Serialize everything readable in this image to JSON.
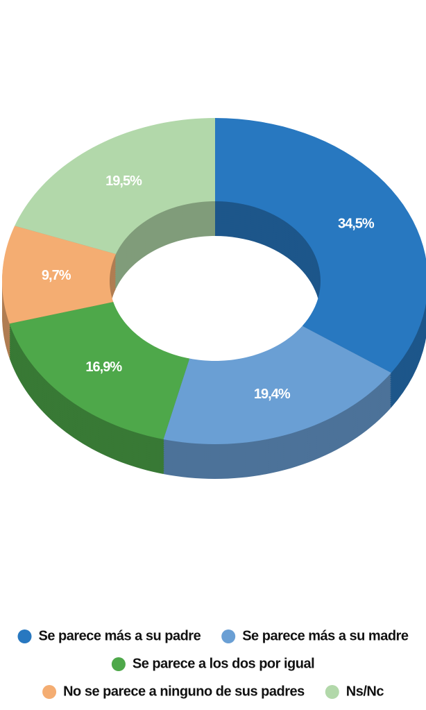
{
  "chart_data": {
    "type": "pie",
    "donut": true,
    "categories": [
      "Se parece más a su padre",
      "Se parece más a su madre",
      "Se parece a los dos por igual",
      "No se parece a ninguno de sus padres",
      "Ns/Nc"
    ],
    "values": [
      34.5,
      19.4,
      16.9,
      9.7,
      19.5
    ],
    "value_labels": [
      "34,5%",
      "19,4%",
      "16,9%",
      "9,7%",
      "19,5%"
    ],
    "colors": [
      "#2878c0",
      "#6a9fd4",
      "#4ea84a",
      "#f4ad72",
      "#b2d8aa"
    ]
  }
}
